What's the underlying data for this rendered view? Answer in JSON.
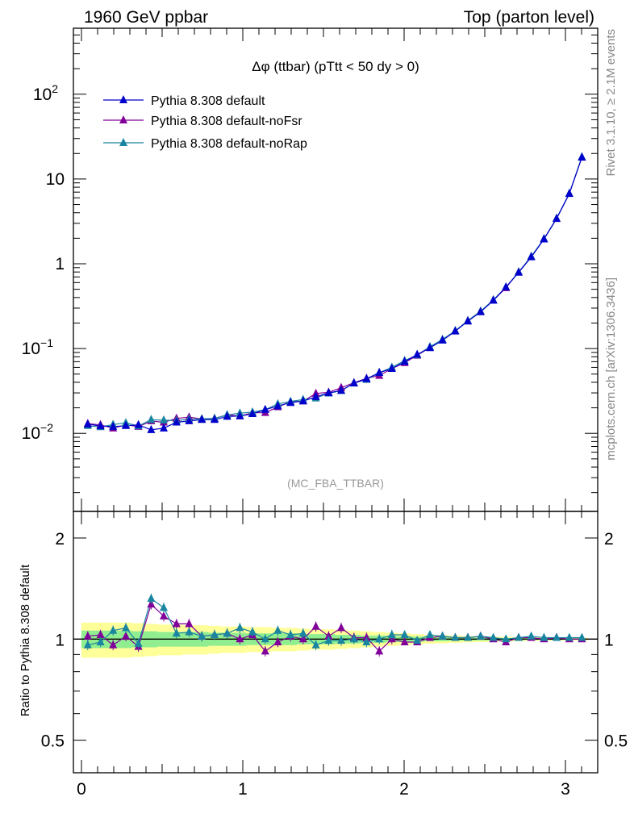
{
  "header": {
    "left": "1960 GeV ppbar",
    "right": "Top (parton level)"
  },
  "side": {
    "rivet": "Rivet 3.1.10, ≥ 2.1M events",
    "mcplots": "mcplots.cern.ch [arXiv:1306.3436]"
  },
  "analysis_label": "(MC_FBA_TTBAR)",
  "colors": {
    "default": "#0000cc",
    "noFsr": "#800099",
    "noRap": "#1a85a0",
    "band_outer": "#ffff99",
    "band_inner": "#90ee90"
  },
  "chart_data": [
    {
      "type": "line",
      "title": "Δφ (ttbar) (pTtt < 50 dy > 0)",
      "xlabel": "",
      "ylabel": "",
      "yscale": "log",
      "xlim": [
        -0.05,
        3.2
      ],
      "ylim": [
        0.0012,
        600
      ],
      "ytick_labels": [
        "10^-2",
        "10^-1",
        "1",
        "10",
        "10^2"
      ],
      "legend_placement": "top-left",
      "x": [
        0.039,
        0.118,
        0.196,
        0.275,
        0.353,
        0.432,
        0.51,
        0.589,
        0.667,
        0.746,
        0.825,
        0.903,
        0.982,
        1.06,
        1.139,
        1.217,
        1.296,
        1.374,
        1.453,
        1.532,
        1.61,
        1.689,
        1.767,
        1.846,
        1.924,
        2.003,
        2.081,
        2.16,
        2.238,
        2.317,
        2.395,
        2.474,
        2.553,
        2.631,
        2.71,
        2.788,
        2.867,
        2.945,
        3.024,
        3.102
      ],
      "series": [
        {
          "name": "Pythia 8.308 default",
          "values": [
            0.0128,
            0.0122,
            0.012,
            0.0123,
            0.0126,
            0.011,
            0.0115,
            0.0135,
            0.014,
            0.0145,
            0.0145,
            0.0158,
            0.016,
            0.017,
            0.019,
            0.021,
            0.023,
            0.024,
            0.027,
            0.03,
            0.032,
            0.039,
            0.044,
            0.052,
            0.058,
            0.07,
            0.085,
            0.102,
            0.125,
            0.16,
            0.21,
            0.27,
            0.37,
            0.53,
            0.79,
            1.2,
            1.95,
            3.4,
            6.7,
            18.0
          ]
        },
        {
          "name": "Pythia 8.308 default-noFsr",
          "values": [
            0.013,
            0.0126,
            0.0115,
            0.0126,
            0.012,
            0.014,
            0.0135,
            0.015,
            0.0155,
            0.0148,
            0.015,
            0.0165,
            0.016,
            0.0175,
            0.0175,
            0.0205,
            0.0235,
            0.024,
            0.0295,
            0.0305,
            0.0345,
            0.0395,
            0.0445,
            0.048,
            0.058,
            0.068,
            0.083,
            0.103,
            0.127,
            0.162,
            0.213,
            0.275,
            0.37,
            0.52,
            0.8,
            1.21,
            1.96,
            3.42,
            6.72,
            18.1
          ]
        },
        {
          "name": "Pythia 8.308 default-noRap",
          "values": [
            0.0123,
            0.0119,
            0.0127,
            0.0133,
            0.0122,
            0.0145,
            0.0143,
            0.0141,
            0.0147,
            0.0148,
            0.015,
            0.0165,
            0.0173,
            0.0178,
            0.019,
            0.0222,
            0.0238,
            0.025,
            0.026,
            0.0297,
            0.0318,
            0.0392,
            0.043,
            0.052,
            0.06,
            0.072,
            0.084,
            0.105,
            0.128,
            0.162,
            0.213,
            0.275,
            0.375,
            0.53,
            0.8,
            1.22,
            1.97,
            3.43,
            6.75,
            18.2
          ]
        }
      ]
    },
    {
      "type": "line",
      "title": "",
      "xlabel": "",
      "ylabel": "Ratio to Pythia 8.308 default",
      "yscale": "log",
      "xlim": [
        -0.05,
        3.2
      ],
      "ylim": [
        0.4,
        2.4
      ],
      "ytick_labels": [
        "0.5",
        "1",
        "2"
      ],
      "xtick_labels": [
        "0",
        "1",
        "2",
        "3"
      ],
      "x": [
        0.039,
        0.118,
        0.196,
        0.275,
        0.353,
        0.432,
        0.51,
        0.589,
        0.667,
        0.746,
        0.825,
        0.903,
        0.982,
        1.06,
        1.139,
        1.217,
        1.296,
        1.374,
        1.453,
        1.532,
        1.61,
        1.689,
        1.767,
        1.846,
        1.924,
        2.003,
        2.081,
        2.16,
        2.238,
        2.317,
        2.395,
        2.474,
        2.553,
        2.631,
        2.71,
        2.788,
        2.867,
        2.945,
        3.024,
        3.102
      ],
      "band_outer_half": [
        0.12,
        0.12,
        0.12,
        0.12,
        0.115,
        0.11,
        0.105,
        0.105,
        0.1,
        0.1,
        0.095,
        0.09,
        0.09,
        0.085,
        0.085,
        0.08,
        0.08,
        0.075,
        0.07,
        0.07,
        0.065,
        0.06,
        0.055,
        0.05,
        0.045,
        0.04,
        0.035,
        0.03,
        0.028,
        0.025,
        0.022,
        0.02,
        0.018,
        0.016,
        0.014,
        0.012,
        0.011,
        0.01,
        0.009,
        0.008
      ],
      "band_inner_half": [
        0.06,
        0.06,
        0.06,
        0.06,
        0.055,
        0.055,
        0.05,
        0.05,
        0.05,
        0.05,
        0.045,
        0.045,
        0.045,
        0.04,
        0.04,
        0.04,
        0.04,
        0.035,
        0.035,
        0.035,
        0.03,
        0.03,
        0.025,
        0.025,
        0.02,
        0.02,
        0.018,
        0.015,
        0.014,
        0.012,
        0.011,
        0.01,
        0.009,
        0.008,
        0.007,
        0.006,
        0.005,
        0.005,
        0.004,
        0.004
      ],
      "series": [
        {
          "name": "Pythia 8.308 default-noFsr",
          "values": [
            1.02,
            1.03,
            0.96,
            1.02,
            0.95,
            1.27,
            1.17,
            1.11,
            1.11,
            1.02,
            1.03,
            1.04,
            1.0,
            1.03,
            0.92,
            0.98,
            1.02,
            1.0,
            1.09,
            1.02,
            1.08,
            1.01,
            1.01,
            0.92,
            1.0,
            0.98,
            0.98,
            1.01,
            1.02,
            1.01,
            1.01,
            1.02,
            1.0,
            0.98,
            1.01,
            1.01,
            1.0,
            1.01,
            1.0,
            1.0
          ]
        },
        {
          "name": "Pythia 8.308 default-noRap",
          "values": [
            0.96,
            0.98,
            1.06,
            1.08,
            0.97,
            1.32,
            1.24,
            1.04,
            1.05,
            1.02,
            1.03,
            1.04,
            1.08,
            1.05,
            1.0,
            1.06,
            1.03,
            1.04,
            0.96,
            0.99,
            0.99,
            1.0,
            0.98,
            1.0,
            1.03,
            1.03,
            0.99,
            1.03,
            1.02,
            1.01,
            1.01,
            1.02,
            1.01,
            1.0,
            1.01,
            1.02,
            1.01,
            1.01,
            1.01,
            1.01
          ]
        }
      ]
    }
  ]
}
